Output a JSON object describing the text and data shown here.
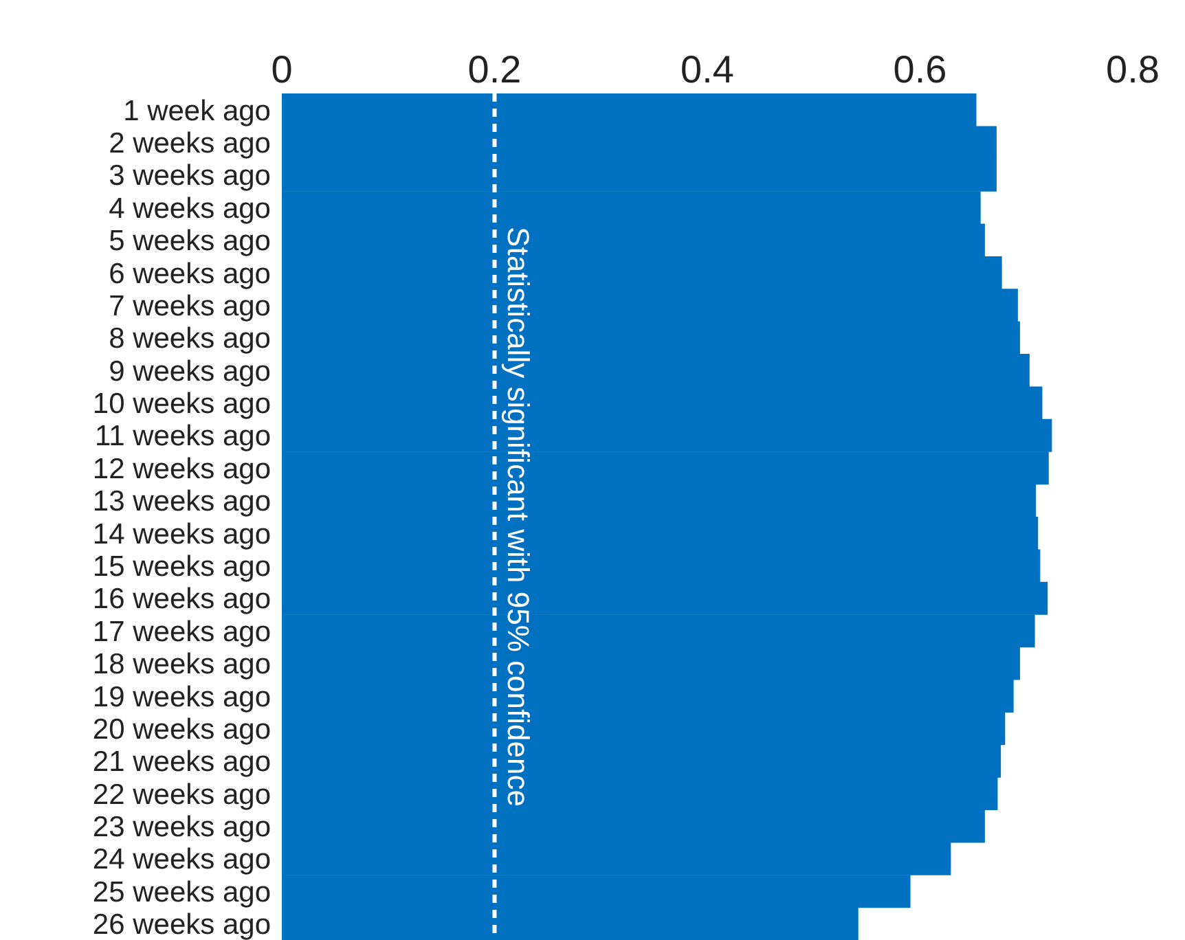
{
  "chart_data": {
    "type": "bar",
    "orientation": "horizontal",
    "categories": [
      "1 week ago",
      "2 weeks ago",
      "3 weeks ago",
      "4 weeks ago",
      "5 weeks ago",
      "6 weeks ago",
      "7 weeks ago",
      "8 weeks ago",
      "9 weeks ago",
      "10 weeks ago",
      "11 weeks ago",
      "12 weeks ago",
      "13 weeks ago",
      "14 weeks ago",
      "15 weeks ago",
      "16 weeks ago",
      "17 weeks ago",
      "18 weeks ago",
      "19 weeks ago",
      "20 weeks ago",
      "21 weeks ago",
      "22 weeks ago",
      "23 weeks ago",
      "24 weeks ago",
      "25 weeks ago",
      "26 weeks ago"
    ],
    "values": [
      0.653,
      0.672,
      0.672,
      0.657,
      0.661,
      0.677,
      0.692,
      0.694,
      0.703,
      0.715,
      0.724,
      0.721,
      0.709,
      0.711,
      0.713,
      0.72,
      0.708,
      0.694,
      0.688,
      0.68,
      0.676,
      0.673,
      0.661,
      0.629,
      0.591,
      0.542
    ],
    "color": "#0070c0",
    "xlim": [
      0,
      0.8
    ],
    "xticks": [
      0,
      0.2,
      0.4,
      0.6,
      0.8
    ],
    "ref_lines": [
      {
        "axis": "x",
        "value": 0.2,
        "label": "Statistically significant with 95% confidence",
        "color": "#ffffff",
        "line_style": "dashed"
      }
    ],
    "grid": false,
    "legend": false
  }
}
